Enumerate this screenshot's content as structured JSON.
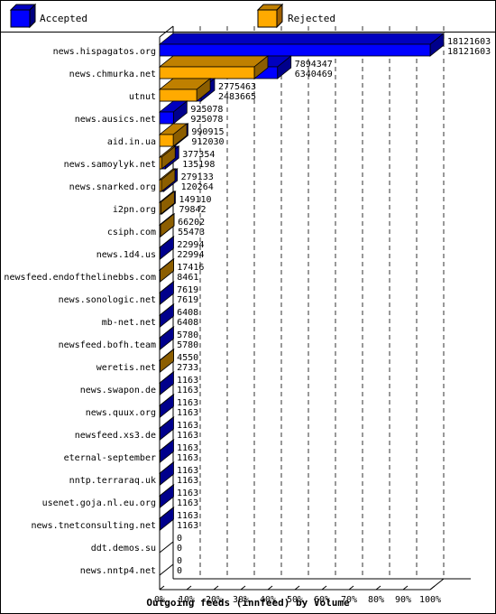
{
  "legend": {
    "accepted_label": "Accepted",
    "rejected_label": "Rejected",
    "accepted_color": "#0000ff",
    "rejected_color": "#ffaa00"
  },
  "chart_data": {
    "type": "bar",
    "orientation": "horizontal",
    "xlabel": "Outgoing feeds (innfeed) by Volume",
    "x_ticks": [
      "0%",
      "10%",
      "20%",
      "30%",
      "40%",
      "50%",
      "60%",
      "70%",
      "80%",
      "90%",
      "100%"
    ],
    "xlim": [
      0,
      100
    ],
    "grid": true,
    "legend_position": "top",
    "max_value": 18121603,
    "categories": [
      "news.hispagatos.org",
      "news.chmurka.net",
      "utnut",
      "news.ausics.net",
      "aid.in.ua",
      "news.samoylyk.net",
      "news.snarked.org",
      "i2pn.org",
      "csiph.com",
      "news.1d4.us",
      "newsfeed.endofthelinebbs.com",
      "news.sonologic.net",
      "mb-net.net",
      "newsfeed.bofh.team",
      "weretis.net",
      "news.swapon.de",
      "news.quux.org",
      "newsfeed.xs3.de",
      "eternal-september",
      "nntp.terraraq.uk",
      "usenet.goja.nl.eu.org",
      "news.tnetconsulting.net",
      "ddt.demos.su",
      "news.nntp4.net"
    ],
    "series": [
      {
        "name": "Accepted",
        "values": [
          18121603,
          7894347,
          2775463,
          925078,
          990915,
          377354,
          279133,
          149110,
          66202,
          22994,
          17416,
          7619,
          6408,
          5780,
          4550,
          1163,
          1163,
          1163,
          1163,
          1163,
          1163,
          1163,
          0,
          0
        ]
      },
      {
        "name": "Rejected",
        "values": [
          18121603,
          6340469,
          2483665,
          925078,
          912030,
          135198,
          120264,
          79842,
          55473,
          22994,
          8461,
          7619,
          6408,
          5780,
          2733,
          1163,
          1163,
          1163,
          1163,
          1163,
          1163,
          1163,
          0,
          0
        ]
      }
    ]
  }
}
